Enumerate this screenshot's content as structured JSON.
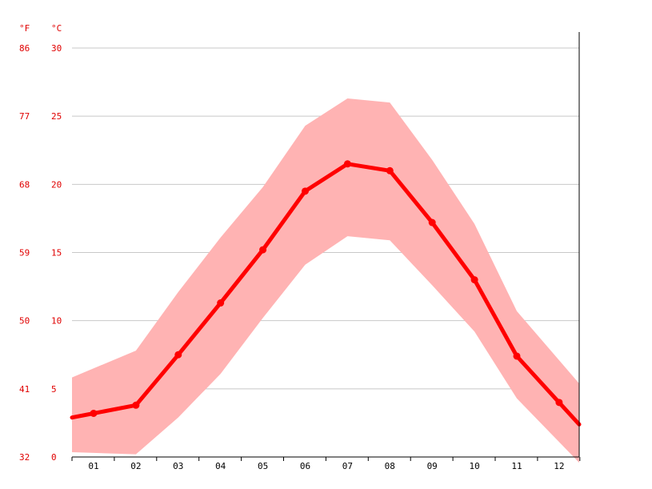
{
  "chart_data": {
    "type": "line",
    "y_left_unit": "°F",
    "y_right_unit": "°C",
    "categories": [
      "01",
      "02",
      "03",
      "04",
      "05",
      "06",
      "07",
      "08",
      "09",
      "10",
      "11",
      "12"
    ],
    "series": [
      {
        "values": [
          3.2,
          3.8,
          7.5,
          11.3,
          15.2,
          19.5,
          21.5,
          21.0,
          17.2,
          13.0,
          7.4,
          4.0
        ]
      }
    ],
    "range_band": {
      "min": [
        0.3,
        0.2,
        2.9,
        6.1,
        10.2,
        14.1,
        16.2,
        15.9,
        12.6,
        9.2,
        4.3,
        1.1
      ],
      "max": [
        6.5,
        7.8,
        12.1,
        16.1,
        19.8,
        24.3,
        26.3,
        26.0,
        21.8,
        17.1,
        10.7,
        7.1
      ]
    },
    "ylim": [
      0,
      30
    ],
    "celsius_ticks": [
      "0",
      "5",
      "10",
      "15",
      "20",
      "25",
      "30"
    ],
    "fahrenheit_ticks": [
      "32",
      "41",
      "50",
      "59",
      "68",
      "77",
      "86"
    ],
    "colors": {
      "line": "#ff0000",
      "band": "#ffb3b3",
      "labels": "#e00000",
      "grid": "#c8c8c8"
    },
    "grid": true
  }
}
